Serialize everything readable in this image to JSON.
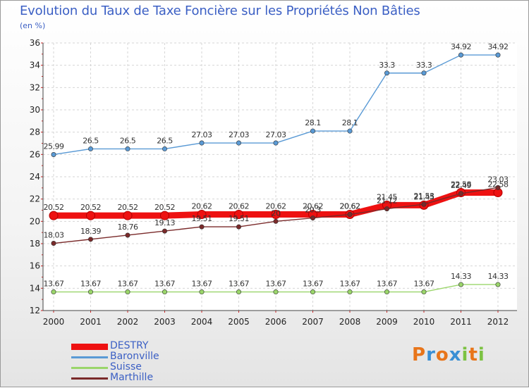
{
  "title": "Evolution du Taux de Taxe Foncière sur les Propriétés Non Bâties",
  "unit_label": "(en %)",
  "logo": {
    "text": "Proxiti",
    "colors": [
      "#e8751a",
      "#3a8fd4",
      "#e8751a",
      "#3a8fd4",
      "#7cc242",
      "#e8751a",
      "#7cc242"
    ]
  },
  "chart_data": {
    "type": "line",
    "title": "Evolution du Taux de Taxe Foncière sur les Propriétés Non Bâties",
    "ylabel": "(en %)",
    "xlabel": "",
    "x": [
      "2000",
      "2001",
      "2002",
      "2003",
      "2004",
      "2005",
      "2006",
      "2007",
      "2008",
      "2009",
      "2010",
      "2011",
      "2012"
    ],
    "ylim": [
      12,
      36
    ],
    "yticks": [
      "12",
      "14",
      "16",
      "18",
      "20",
      "22",
      "24",
      "26",
      "28",
      "30",
      "32",
      "34",
      "36"
    ],
    "grid": true,
    "legend_position": "bottom-left",
    "series": [
      {
        "name": "DESTRY",
        "color": "#ee1111",
        "values": [
          20.52,
          20.52,
          20.52,
          20.52,
          20.62,
          20.62,
          20.62,
          20.62,
          20.62,
          21.45,
          21.45,
          22.58,
          22.58
        ],
        "labels": [
          "20.52",
          "20.52",
          "20.52",
          "20.52",
          "20.62",
          "20.62",
          "20.62",
          "20.62",
          "20.62",
          "21.45",
          "21.45",
          "22.58",
          "22.58"
        ]
      },
      {
        "name": "Baronville",
        "color": "#5a9ad5",
        "values": [
          25.99,
          26.5,
          26.5,
          26.5,
          27.03,
          27.03,
          27.03,
          28.1,
          28.1,
          33.3,
          33.3,
          34.92,
          34.92
        ],
        "labels": [
          "25.99",
          "26.5",
          "26.5",
          "26.5",
          "27.03",
          "27.03",
          "27.03",
          "28.1",
          "28.1",
          "33.3",
          "33.3",
          "34.92",
          "34.92"
        ]
      },
      {
        "name": "Suisse",
        "color": "#9ad56a",
        "values": [
          13.67,
          13.67,
          13.67,
          13.67,
          13.67,
          13.67,
          13.67,
          13.67,
          13.67,
          13.67,
          13.67,
          14.33,
          14.33
        ],
        "labels": [
          "13.67",
          "13.67",
          "13.67",
          "13.67",
          "13.67",
          "13.67",
          "13.67",
          "13.67",
          "13.67",
          "13.67",
          "13.67",
          "14.33",
          "14.33"
        ]
      },
      {
        "name": "Marthille",
        "color": "#7a2a2a",
        "values": [
          18.03,
          18.39,
          18.76,
          19.13,
          19.51,
          19.51,
          20,
          20.3,
          20.62,
          21.12,
          21.53,
          22.49,
          23.03
        ],
        "labels": [
          "18.03",
          "18.39",
          "18.76",
          "19.13",
          "19.51",
          "19.51",
          "20",
          "20.3",
          "20.62",
          "21.12",
          "21.53",
          "22.49",
          "23.03"
        ]
      }
    ]
  }
}
